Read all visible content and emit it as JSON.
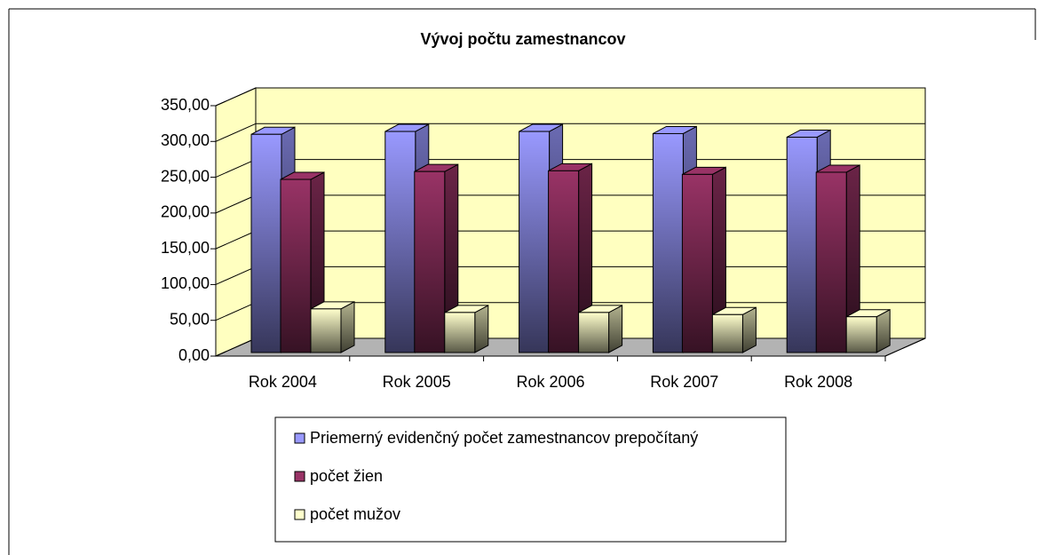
{
  "chart_data": {
    "type": "bar3d",
    "title": "Vývoj počtu zamestnancov",
    "categories": [
      "Rok 2004",
      "Rok 2005",
      "Rok 2006",
      "Rok 2007",
      "Rok 2008"
    ],
    "series": [
      {
        "name": "Priemerný evidenčný počet zamestnancov prepočítaný",
        "color": "#9999ff",
        "values": [
          305,
          309,
          309,
          306,
          301
        ]
      },
      {
        "name": "počet žien",
        "color": "#993366",
        "values": [
          242,
          253,
          254,
          249,
          252
        ]
      },
      {
        "name": "počet mužov",
        "color": "#ffffcc",
        "values": [
          61,
          56,
          56,
          53,
          50
        ]
      }
    ],
    "ylim": [
      0,
      350
    ],
    "yticks": [
      {
        "value": 0,
        "label": "0,00"
      },
      {
        "value": 50,
        "label": "50,00"
      },
      {
        "value": 100,
        "label": "100,00"
      },
      {
        "value": 150,
        "label": "150,00"
      },
      {
        "value": 200,
        "label": "200,00"
      },
      {
        "value": 250,
        "label": "250,00"
      },
      {
        "value": 300,
        "label": "300,00"
      },
      {
        "value": 350,
        "label": "350,00"
      }
    ],
    "grid": true
  }
}
